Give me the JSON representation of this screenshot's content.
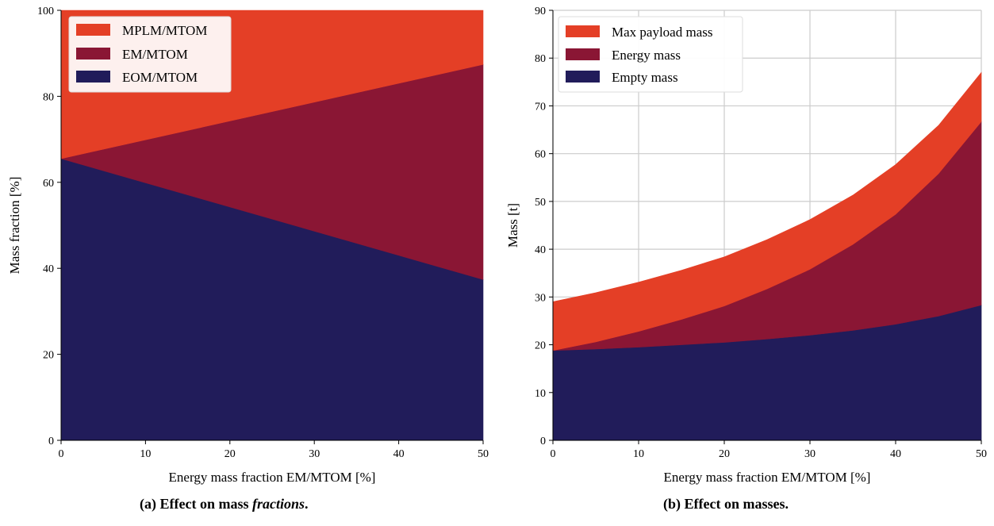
{
  "colors": {
    "payload": "#e43f26",
    "energy": "#8a1634",
    "empty": "#211c5a",
    "grid": "#cccccc"
  },
  "chart_data": [
    {
      "type": "area",
      "stacked": true,
      "xlabel": "Energy mass fraction EM/MTOM [%]",
      "ylabel": "Mass fraction [%]",
      "xlim": [
        0,
        50
      ],
      "ylim": [
        0,
        100
      ],
      "xticks": [
        0,
        10,
        20,
        30,
        40,
        50
      ],
      "yticks": [
        0,
        20,
        40,
        60,
        80,
        100
      ],
      "grid": false,
      "legend_position": "top-left",
      "x": [
        0,
        50
      ],
      "series": [
        {
          "name": "EOM/MTOM",
          "color_key": "empty",
          "values": [
            65.5,
            37.4
          ]
        },
        {
          "name": "EM/MTOM",
          "color_key": "energy",
          "values": [
            0,
            50
          ]
        },
        {
          "name": "MPLM/MTOM",
          "color_key": "payload",
          "values": [
            34.5,
            12.6
          ]
        }
      ],
      "legend_order": [
        "MPLM/MTOM",
        "EM/MTOM",
        "EOM/MTOM"
      ],
      "caption_label": "(a) Effect on mass",
      "caption_emph": "fractions",
      "caption_end": "."
    },
    {
      "type": "area",
      "stacked": true,
      "xlabel": "Energy mass fraction EM/MTOM [%]",
      "ylabel": "Mass [t]",
      "xlim": [
        0,
        50
      ],
      "ylim": [
        0,
        90
      ],
      "xticks": [
        0,
        10,
        20,
        30,
        40,
        50
      ],
      "yticks": [
        0,
        10,
        20,
        30,
        40,
        50,
        60,
        70,
        80,
        90
      ],
      "grid": true,
      "legend_position": "top-left",
      "x": [
        0,
        5,
        10,
        15,
        20,
        25,
        30,
        35,
        40,
        45,
        50
      ],
      "series": [
        {
          "name": "Empty mass",
          "color_key": "empty",
          "values": [
            18.8,
            19.1,
            19.5,
            20.0,
            20.5,
            21.2,
            22.0,
            23.0,
            24.3,
            26.0,
            28.3
          ]
        },
        {
          "name": "Energy mass",
          "color_key": "energy",
          "values": [
            0,
            1.5,
            3.3,
            5.3,
            7.6,
            10.5,
            13.8,
            18.0,
            23.0,
            29.8,
            38.4
          ]
        },
        {
          "name": "Max payload mass",
          "color_key": "payload",
          "values": [
            10.2,
            10.3,
            10.3,
            10.3,
            10.3,
            10.3,
            10.4,
            10.3,
            10.4,
            10.1,
            10.3
          ]
        }
      ],
      "legend_order": [
        "Max payload mass",
        "Energy mass",
        "Empty mass"
      ],
      "caption_label": "(b) Effect on masses."
    }
  ]
}
